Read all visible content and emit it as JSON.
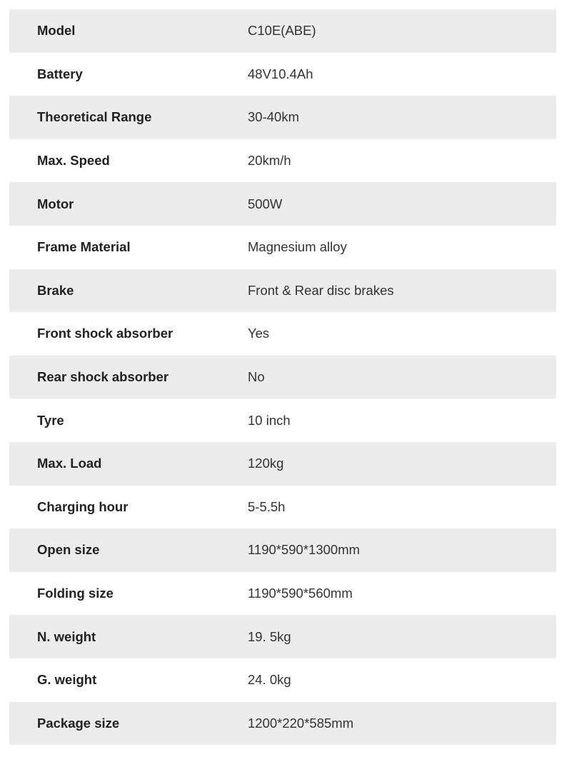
{
  "specs": [
    {
      "label": "Model",
      "value": "C10E(ABE)"
    },
    {
      "label": "Battery",
      "value": "48V10.4Ah"
    },
    {
      "label": "Theoretical Range",
      "value": "30-40km"
    },
    {
      "label": "Max. Speed",
      "value": "20km/h"
    },
    {
      "label": "Motor",
      "value": "500W"
    },
    {
      "label": "Frame Material",
      "value": "Magnesium alloy"
    },
    {
      "label": "Brake",
      "value": "Front & Rear disc brakes"
    },
    {
      "label": "Front shock absorber",
      "value": "Yes"
    },
    {
      "label": "Rear shock absorber",
      "value": "No"
    },
    {
      "label": "Tyre",
      "value": "10 inch"
    },
    {
      "label": "Max. Load",
      "value": "120kg"
    },
    {
      "label": "Charging hour",
      "value": "5-5.5h"
    },
    {
      "label": "Open size",
      "value": "1190*590*1300mm"
    },
    {
      "label": "Folding size",
      "value": "1190*590*560mm"
    },
    {
      "label": "N. weight",
      "value": "19. 5kg"
    },
    {
      "label": "G. weight",
      "value": "24. 0kg"
    },
    {
      "label": "Package size",
      "value": "1200*220*585mm"
    }
  ],
  "colors": {
    "shaded_row": "#ececec",
    "text": "#222222"
  }
}
